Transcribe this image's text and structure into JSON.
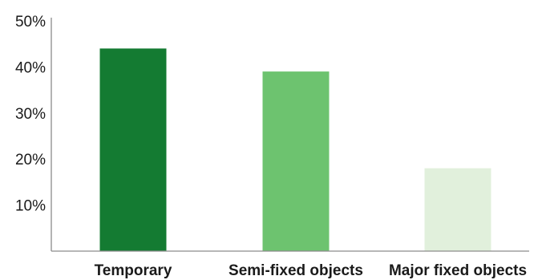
{
  "chart_data": {
    "type": "bar",
    "categories": [
      "Temporary",
      "Semi-fixed objects",
      "Major fixed objects"
    ],
    "values": [
      44,
      39,
      18
    ],
    "colors": [
      "#147b32",
      "#6dc36f",
      "#e1f0dc"
    ],
    "yticks": [
      "10%",
      "20%",
      "30%",
      "40%",
      "50%"
    ],
    "ytick_values": [
      10,
      20,
      30,
      40,
      50
    ],
    "ylim": [
      0,
      50
    ],
    "title": "",
    "xlabel": "",
    "ylabel": "",
    "grid": false,
    "legend": "none"
  }
}
